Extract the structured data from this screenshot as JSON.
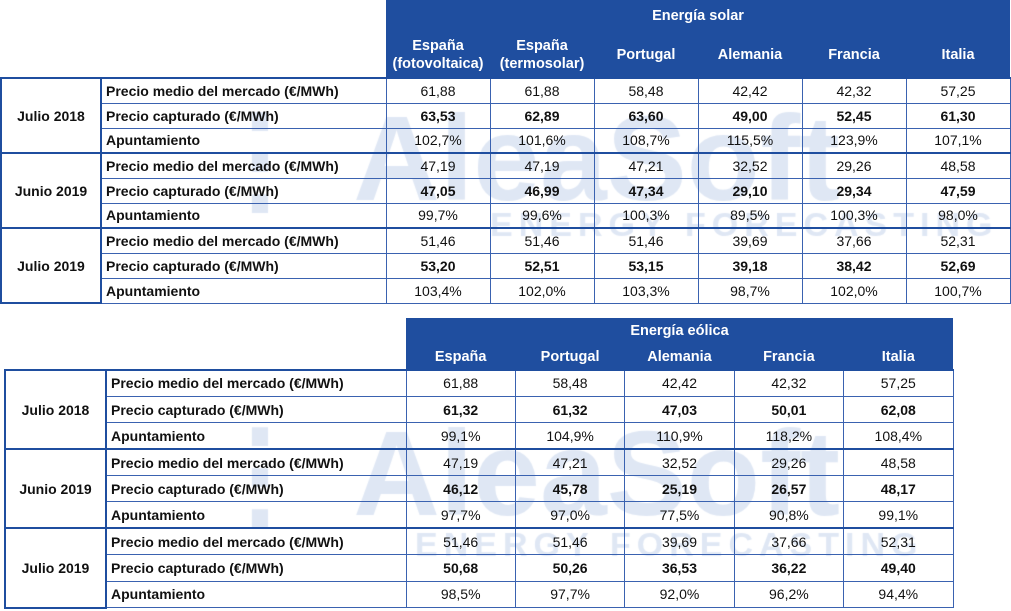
{
  "watermark": {
    "logo": "AleaSoft",
    "tagline": "ENERGY FORECASTING"
  },
  "row_labels": [
    "Precio medio del mercado (€/MWh)",
    "Precio capturado (€/MWh)",
    "Apuntamiento"
  ],
  "colors": {
    "header_bg": "#1f4e9f",
    "border": "#3a62b0"
  },
  "tables": [
    {
      "title": "Energía solar",
      "columns": [
        [
          "España",
          "(fotovoltaica)"
        ],
        [
          "España",
          "(termosolar)"
        ],
        [
          "Portugal"
        ],
        [
          "Alemania"
        ],
        [
          "Francia"
        ],
        [
          "Italia"
        ]
      ],
      "groups": [
        {
          "period": "Julio 2018",
          "rows": [
            [
              "61,88",
              "61,88",
              "58,48",
              "42,42",
              "42,32",
              "57,25"
            ],
            [
              "63,53",
              "62,89",
              "63,60",
              "49,00",
              "52,45",
              "61,30"
            ],
            [
              "102,7%",
              "101,6%",
              "108,7%",
              "115,5%",
              "123,9%",
              "107,1%"
            ]
          ]
        },
        {
          "period": "Junio 2019",
          "rows": [
            [
              "47,19",
              "47,19",
              "47,21",
              "32,52",
              "29,26",
              "48,58"
            ],
            [
              "47,05",
              "46,99",
              "47,34",
              "29,10",
              "29,34",
              "47,59"
            ],
            [
              "99,7%",
              "99,6%",
              "100,3%",
              "89,5%",
              "100,3%",
              "98,0%"
            ]
          ]
        },
        {
          "period": "Julio 2019",
          "rows": [
            [
              "51,46",
              "51,46",
              "51,46",
              "39,69",
              "37,66",
              "52,31"
            ],
            [
              "53,20",
              "52,51",
              "53,15",
              "39,18",
              "38,42",
              "52,69"
            ],
            [
              "103,4%",
              "102,0%",
              "103,3%",
              "98,7%",
              "102,0%",
              "100,7%"
            ]
          ]
        }
      ]
    },
    {
      "title": "Energía eólica",
      "columns": [
        [
          "España"
        ],
        [
          "Portugal"
        ],
        [
          "Alemania"
        ],
        [
          "Francia"
        ],
        [
          "Italia"
        ]
      ],
      "groups": [
        {
          "period": "Julio 2018",
          "rows": [
            [
              "61,88",
              "58,48",
              "42,42",
              "42,32",
              "57,25"
            ],
            [
              "61,32",
              "61,32",
              "47,03",
              "50,01",
              "62,08"
            ],
            [
              "99,1%",
              "104,9%",
              "110,9%",
              "118,2%",
              "108,4%"
            ]
          ]
        },
        {
          "period": "Junio 2019",
          "rows": [
            [
              "47,19",
              "47,21",
              "32,52",
              "29,26",
              "48,58"
            ],
            [
              "46,12",
              "45,78",
              "25,19",
              "26,57",
              "48,17"
            ],
            [
              "97,7%",
              "97,0%",
              "77,5%",
              "90,8%",
              "99,1%"
            ]
          ]
        },
        {
          "period": "Julio 2019",
          "rows": [
            [
              "51,46",
              "51,46",
              "39,69",
              "37,66",
              "52,31"
            ],
            [
              "50,68",
              "50,26",
              "36,53",
              "36,22",
              "49,40"
            ],
            [
              "98,5%",
              "97,7%",
              "92,0%",
              "96,2%",
              "94,4%"
            ]
          ]
        }
      ]
    }
  ]
}
